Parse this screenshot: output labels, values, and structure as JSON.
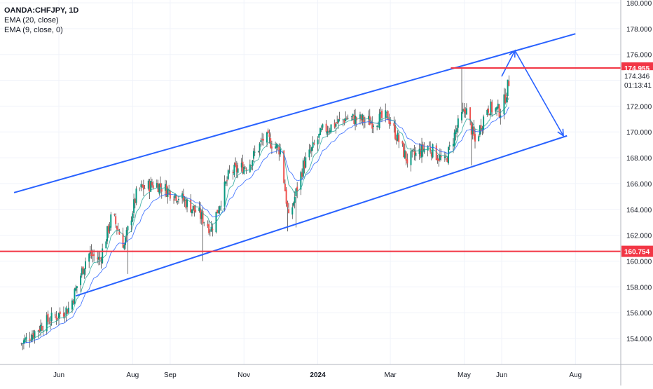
{
  "legend": {
    "symbol": "OANDA:CHFJPY, 1D",
    "ema20": "EMA (20, close)",
    "ema9": "EMA (9, close, 0)"
  },
  "price_axis": {
    "ticks": [
      "180.000",
      "178.000",
      "176.000",
      "174.000",
      "172.000",
      "170.000",
      "168.000",
      "166.000",
      "164.000",
      "162.000",
      "160.000",
      "158.000",
      "156.000",
      "154.000"
    ],
    "tick_values": [
      180,
      178,
      176,
      174,
      172,
      170,
      168,
      166,
      164,
      162,
      160,
      158,
      156,
      154
    ],
    "resistance_label": "174.955",
    "last_price_label": "174.346",
    "countdown_label": "01:13:41",
    "support_label": "160.754"
  },
  "time_axis": {
    "labels": [
      "Jun",
      "Aug",
      "Sep",
      "Nov",
      "2024",
      "Mar",
      "May",
      "Jun",
      "Aug"
    ],
    "label_dates": [
      "2023-06-01",
      "2023-08-01",
      "2023-09-01",
      "2023-11-01",
      "2024-01-01",
      "2024-03-01",
      "2024-05-01",
      "2024-06-01",
      "2024-08-01"
    ]
  },
  "colors": {
    "up": "#089981",
    "down": "#f23645",
    "candle_red": "#ef5350",
    "ema20": "#2962ff",
    "ema9": "#26a69a",
    "channel": "#2962ff",
    "hline": "#f23645",
    "grid": "#f0f3fa",
    "text": "#131722"
  },
  "chart_data": {
    "type": "candlestick",
    "title": "OANDA:CHFJPY, 1D",
    "ylim": [
      152,
      181
    ],
    "grid": true,
    "legend": "top-left",
    "series": [
      {
        "name": "EMA (20, close)"
      },
      {
        "name": "EMA (9, close, 0)"
      }
    ],
    "price_path": [
      {
        "date": "2023-05-01",
        "close": 153.6
      },
      {
        "date": "2023-05-20",
        "close": 155.2
      },
      {
        "date": "2023-06-10",
        "close": 156.4
      },
      {
        "date": "2023-06-25",
        "close": 160.6
      },
      {
        "date": "2023-07-05",
        "close": 160.1
      },
      {
        "date": "2023-07-15",
        "close": 163.6
      },
      {
        "date": "2023-07-25",
        "close": 161.2
      },
      {
        "date": "2023-08-05",
        "close": 165.5
      },
      {
        "date": "2023-08-20",
        "close": 166.0
      },
      {
        "date": "2023-09-10",
        "close": 164.9
      },
      {
        "date": "2023-09-25",
        "close": 163.6
      },
      {
        "date": "2023-10-05",
        "close": 162.5
      },
      {
        "date": "2023-10-20",
        "close": 166.8
      },
      {
        "date": "2023-11-05",
        "close": 167.5
      },
      {
        "date": "2023-11-18",
        "close": 169.6
      },
      {
        "date": "2023-12-01",
        "close": 168.6
      },
      {
        "date": "2023-12-08",
        "close": 163.2
      },
      {
        "date": "2023-12-20",
        "close": 167.4
      },
      {
        "date": "2024-01-05",
        "close": 170.1
      },
      {
        "date": "2024-01-25",
        "close": 171.1
      },
      {
        "date": "2024-02-15",
        "close": 170.8
      },
      {
        "date": "2024-02-28",
        "close": 171.2
      },
      {
        "date": "2024-03-15",
        "close": 167.8
      },
      {
        "date": "2024-04-01",
        "close": 168.9
      },
      {
        "date": "2024-04-15",
        "close": 167.6
      },
      {
        "date": "2024-04-25",
        "close": 170.3
      },
      {
        "date": "2024-05-02",
        "close": 171.9
      },
      {
        "date": "2024-05-10",
        "close": 169.2
      },
      {
        "date": "2024-05-20",
        "close": 171.9
      },
      {
        "date": "2024-06-01",
        "close": 171.6
      },
      {
        "date": "2024-06-08",
        "close": 174.3
      }
    ],
    "drawings": {
      "channel_upper": [
        {
          "date": "2023-04-25",
          "price": 165.3
        },
        {
          "date": "2024-08-01",
          "price": 177.6
        }
      ],
      "channel_lower": [
        {
          "date": "2023-06-15",
          "price": 157.3
        },
        {
          "date": "2024-07-25",
          "price": 169.7
        }
      ],
      "arrow_up": [
        {
          "date": "2024-06-01",
          "price": 174.3
        },
        {
          "date": "2024-06-12",
          "price": 176.3
        }
      ],
      "arrow_down": [
        {
          "date": "2024-06-12",
          "price": 176.3
        },
        {
          "date": "2024-07-22",
          "price": 169.7
        }
      ],
      "resistance_segment": {
        "price": 174.955,
        "from": "2024-04-20"
      },
      "support_line": {
        "price": 160.754
      }
    }
  }
}
